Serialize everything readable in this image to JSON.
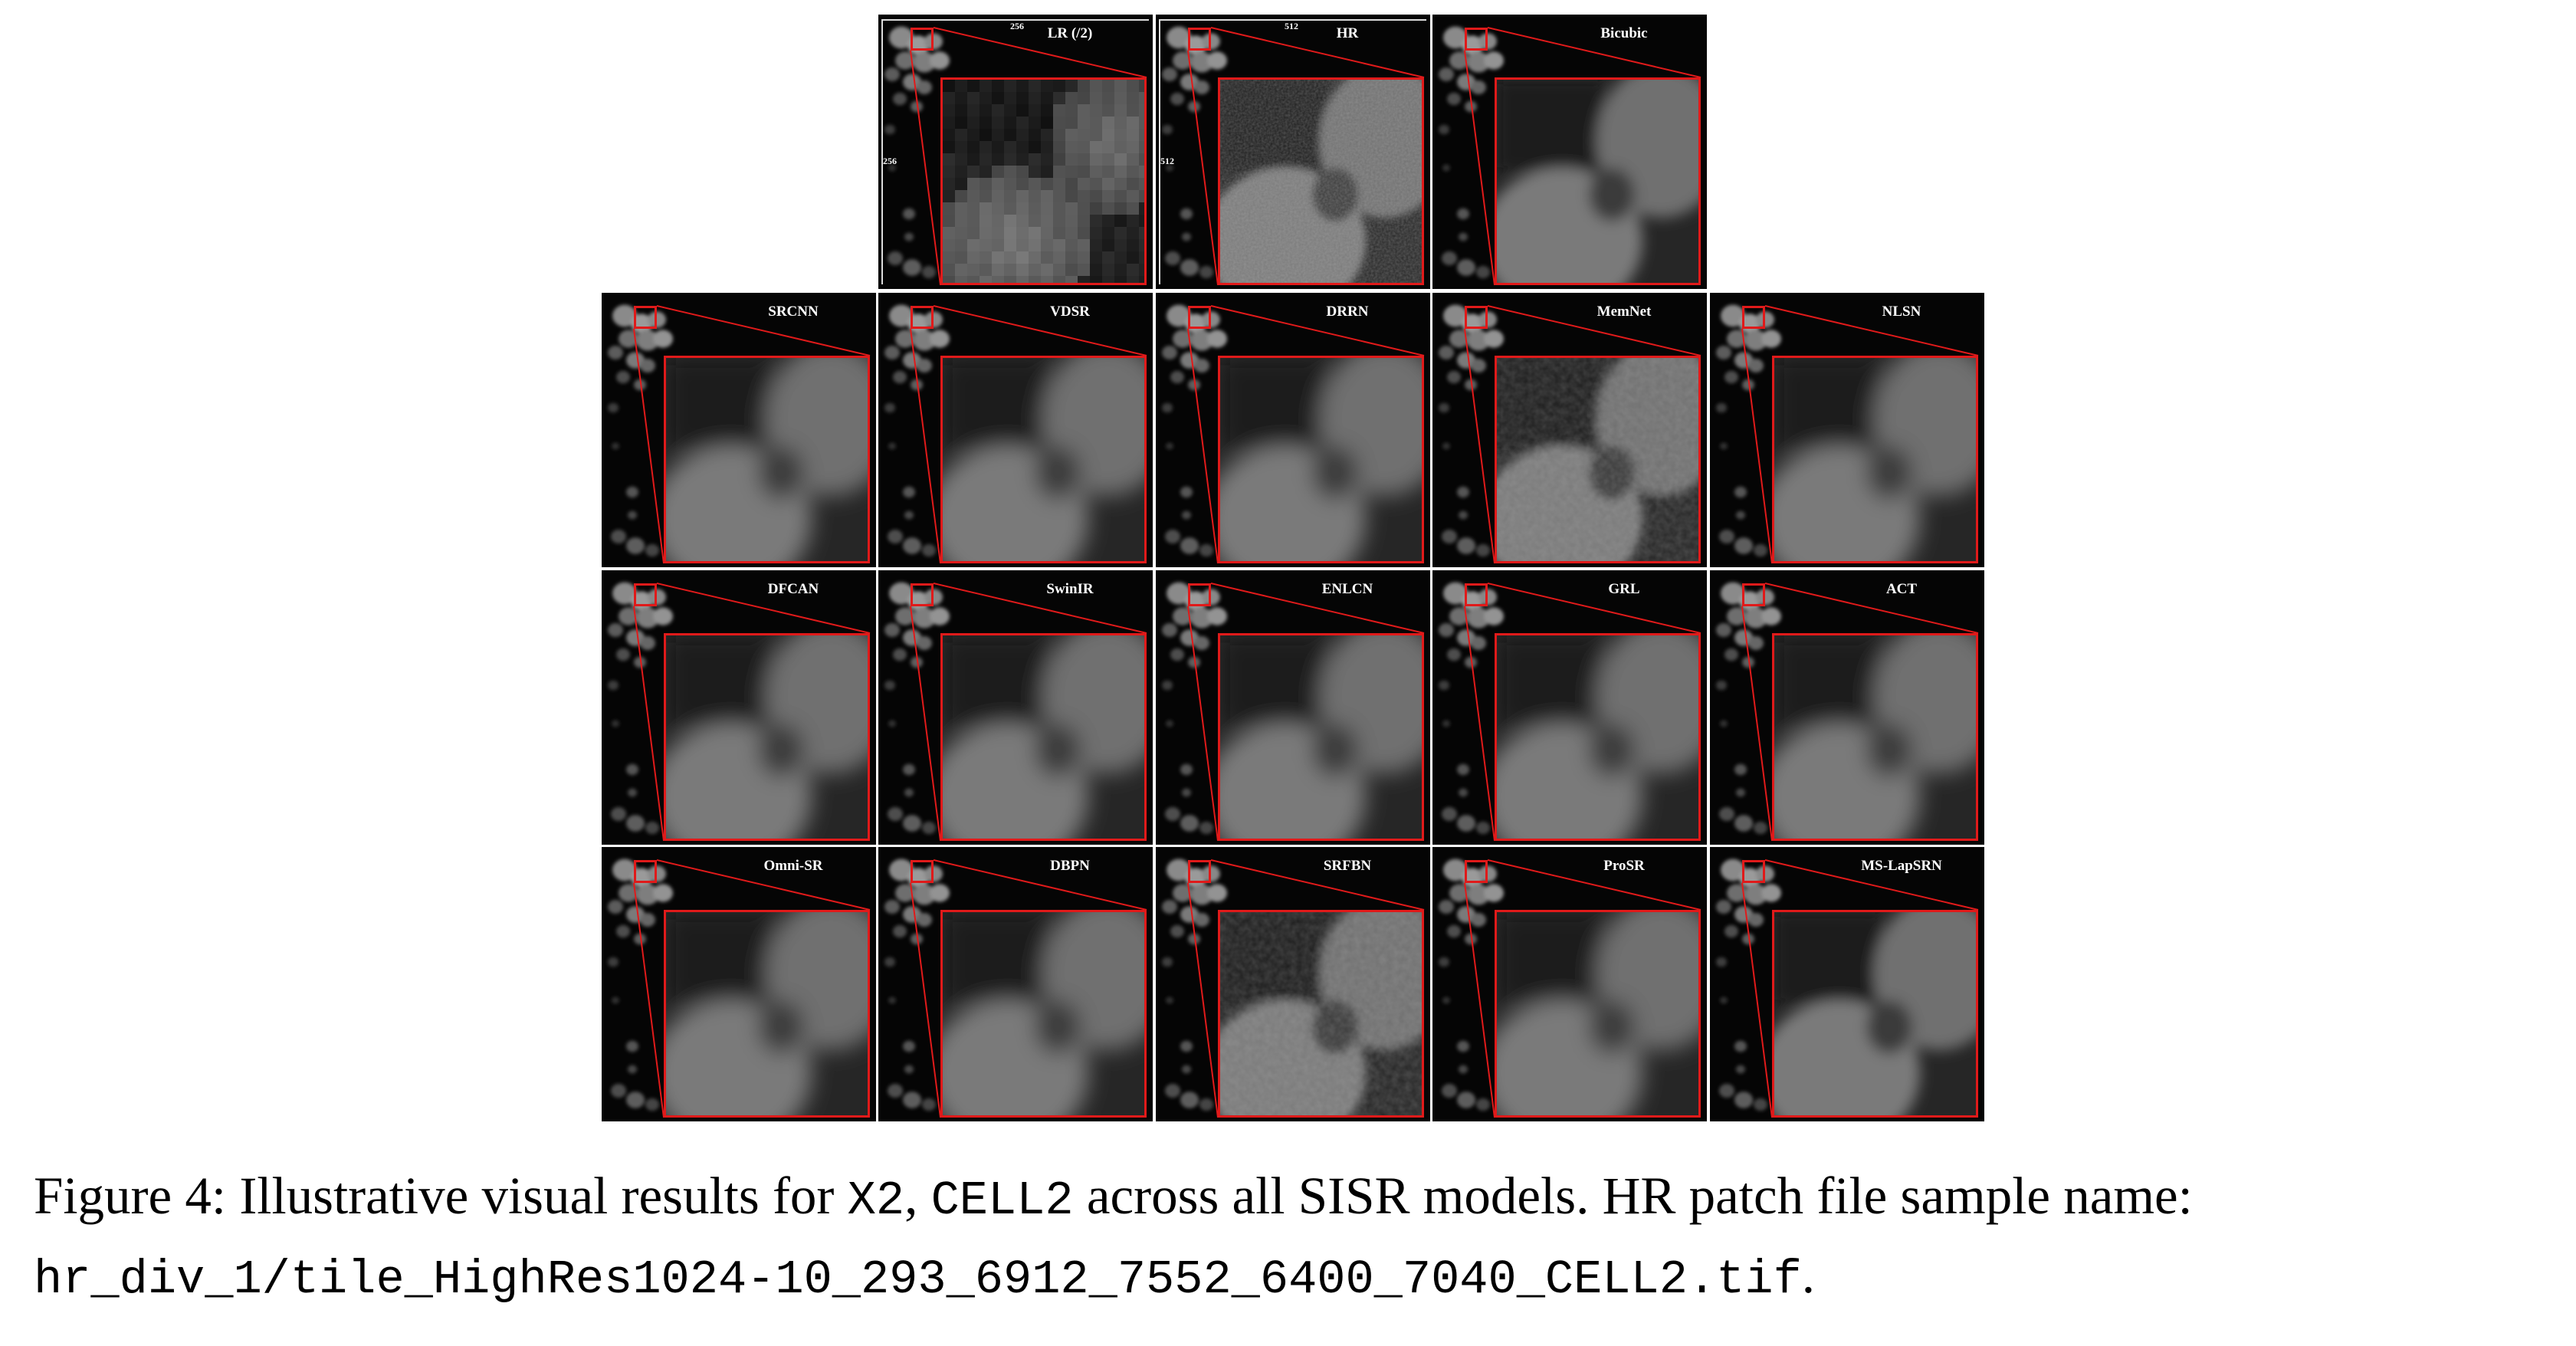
{
  "figure": {
    "tiles": [
      {
        "label": "LR (/2)",
        "row": 0,
        "col": 1,
        "style": "lr",
        "dim_top": "256",
        "dim_left": "256"
      },
      {
        "label": "HR",
        "row": 0,
        "col": 2,
        "style": "hr",
        "dim_top": "512",
        "dim_left": "512"
      },
      {
        "label": "Bicubic",
        "row": 0,
        "col": 3,
        "style": "mid"
      },
      {
        "label": "SRCNN",
        "row": 1,
        "col": 0,
        "style": "smooth"
      },
      {
        "label": "VDSR",
        "row": 1,
        "col": 1,
        "style": "smooth"
      },
      {
        "label": "DRRN",
        "row": 1,
        "col": 2,
        "style": "smooth"
      },
      {
        "label": "MemNet",
        "row": 1,
        "col": 3,
        "style": "noisy"
      },
      {
        "label": "NLSN",
        "row": 1,
        "col": 4,
        "style": "smooth"
      },
      {
        "label": "DFCAN",
        "row": 2,
        "col": 0,
        "style": "smooth"
      },
      {
        "label": "SwinIR",
        "row": 2,
        "col": 1,
        "style": "smooth"
      },
      {
        "label": "ENLCN",
        "row": 2,
        "col": 2,
        "style": "smooth"
      },
      {
        "label": "GRL",
        "row": 2,
        "col": 3,
        "style": "smooth"
      },
      {
        "label": "ACT",
        "row": 2,
        "col": 4,
        "style": "smooth"
      },
      {
        "label": "Omni-SR",
        "row": 3,
        "col": 0,
        "style": "smooth"
      },
      {
        "label": "DBPN",
        "row": 3,
        "col": 1,
        "style": "smooth"
      },
      {
        "label": "SRFBN",
        "row": 3,
        "col": 2,
        "style": "noisy"
      },
      {
        "label": "ProSR",
        "row": 3,
        "col": 3,
        "style": "smooth"
      },
      {
        "label": "MS-LapSRN",
        "row": 3,
        "col": 4,
        "style": "mid"
      }
    ]
  },
  "caption": {
    "prefix": "Figure 4: Illustrative visual results for ",
    "scale": "X2",
    "sep": ", ",
    "dataset": "CELL2",
    "suffix": " across all SISR models. HR patch file sample name:",
    "filename": "hr_div_1/tile_HighRes1024-10_293_6912_7552_6400_7040_CELL2.tif",
    "end": "."
  },
  "colors": {
    "roi_border": "#e01a1a",
    "tile_bg": "#050505",
    "label": "#ffffff"
  }
}
